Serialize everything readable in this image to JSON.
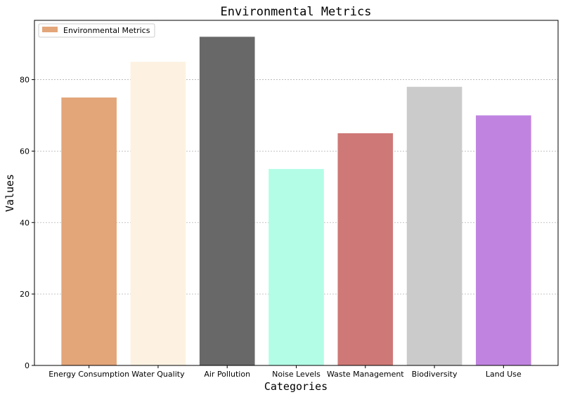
{
  "chart_data": {
    "type": "bar",
    "title": "Environmental Metrics",
    "xlabel": "Categories",
    "ylabel": "Values",
    "categories": [
      "Energy Consumption",
      "Water Quality",
      "Air Pollution",
      "Noise Levels",
      "Waste Management",
      "Biodiversity",
      "Land Use"
    ],
    "series": [
      {
        "name": "Environmental Metrics",
        "values": [
          75,
          85,
          92,
          55,
          65,
          78,
          70
        ]
      }
    ],
    "bar_colors": [
      "#e3a679",
      "#fdf2e1",
      "#686868",
      "#b3fde6",
      "#ce7977",
      "#cbcbcb",
      "#c084e0"
    ],
    "legend_color": "#e3a679",
    "ylim": [
      0,
      96.6
    ],
    "yticks": [
      0,
      20,
      40,
      60,
      80
    ],
    "grid": "y-dashed",
    "legend_position": "top-left"
  }
}
